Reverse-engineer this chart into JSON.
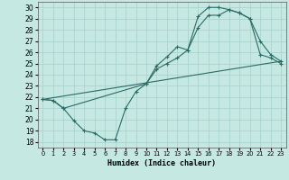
{
  "xlabel": "Humidex (Indice chaleur)",
  "bg_color": "#c5e8e3",
  "grid_color": "#aad4ce",
  "line_color": "#2a6b65",
  "xlim": [
    -0.5,
    23.5
  ],
  "ylim": [
    17.5,
    30.5
  ],
  "xticks": [
    0,
    1,
    2,
    3,
    4,
    5,
    6,
    7,
    8,
    9,
    10,
    11,
    12,
    13,
    14,
    15,
    16,
    17,
    18,
    19,
    20,
    21,
    22,
    23
  ],
  "yticks": [
    18,
    19,
    20,
    21,
    22,
    23,
    24,
    25,
    26,
    27,
    28,
    29,
    30
  ],
  "line1_x": [
    0,
    1,
    2,
    3,
    4,
    5,
    6,
    7,
    8,
    9,
    10,
    11,
    12,
    13,
    14,
    15,
    16,
    17,
    18,
    19,
    20,
    21,
    22,
    23
  ],
  "line1_y": [
    21.8,
    21.7,
    21.0,
    19.9,
    19.0,
    18.8,
    18.2,
    18.2,
    21.0,
    22.5,
    23.2,
    24.8,
    25.6,
    26.5,
    26.2,
    28.2,
    29.3,
    29.3,
    29.8,
    29.5,
    29.0,
    27.0,
    25.8,
    25.2
  ],
  "line2_x": [
    0,
    1,
    2,
    10,
    11,
    12,
    13,
    14,
    15,
    16,
    17,
    18,
    19,
    20,
    21,
    22,
    23
  ],
  "line2_y": [
    21.8,
    21.7,
    21.0,
    23.2,
    24.5,
    25.0,
    25.5,
    26.2,
    29.2,
    30.0,
    30.0,
    29.8,
    29.5,
    29.0,
    25.8,
    25.5,
    25.0
  ],
  "line3_x": [
    0,
    23
  ],
  "line3_y": [
    21.8,
    25.2
  ]
}
